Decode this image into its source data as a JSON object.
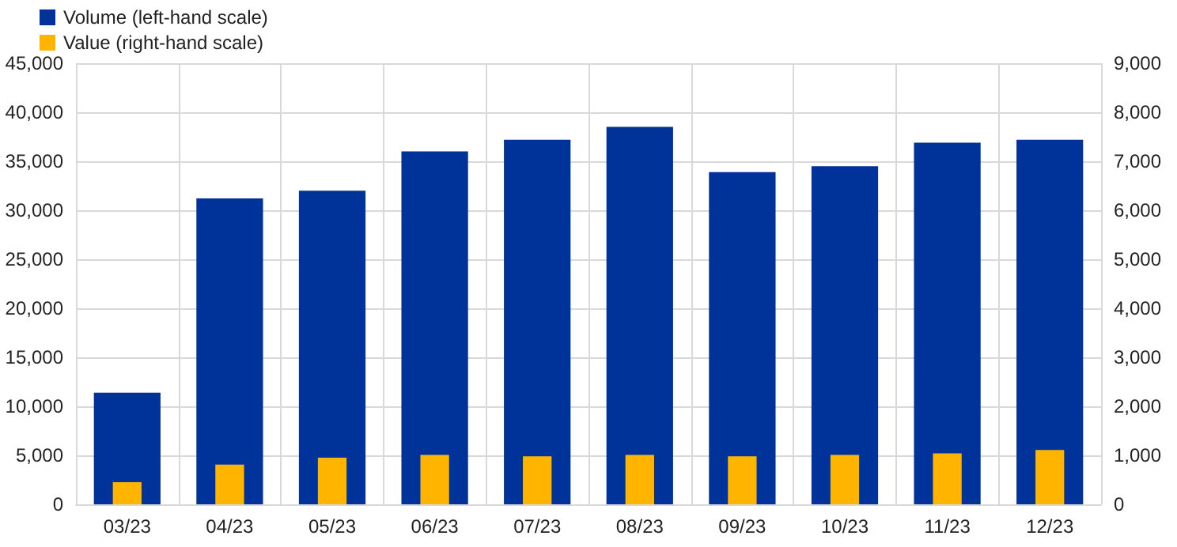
{
  "chart_data": {
    "type": "bar",
    "categories": [
      "03/23",
      "04/23",
      "05/23",
      "06/23",
      "07/23",
      "08/23",
      "09/23",
      "10/23",
      "11/23",
      "12/23"
    ],
    "series": [
      {
        "name": "Volume (left-hand scale)",
        "color": "#003399",
        "values": [
          11400,
          31200,
          32000,
          36000,
          37200,
          38500,
          33900,
          34500,
          36900,
          37200
        ]
      },
      {
        "name": "Value (right-hand scale)",
        "color": "#ffb400",
        "axis": "y2",
        "values": [
          450,
          810,
          950,
          1010,
          980,
          1010,
          980,
          1010,
          1040,
          1110
        ]
      }
    ],
    "ylim": [
      0,
      45000
    ],
    "yticks": [
      0,
      {
        "value": 5000,
        "label": "5,000"
      },
      {
        "value": 10000,
        "label": "10,000"
      },
      {
        "value": 15000,
        "label": "15,000"
      },
      {
        "value": 20000,
        "label": "20,000"
      },
      {
        "value": 25000,
        "label": "25,000"
      },
      {
        "value": 30000,
        "label": "30,000"
      },
      {
        "value": 35000,
        "label": "35,000"
      },
      {
        "value": 40000,
        "label": "40,000"
      },
      {
        "value": 45000,
        "label": "45,000"
      }
    ],
    "y2lim": [
      0,
      9000
    ],
    "y2ticks": [
      0,
      {
        "value": 1000,
        "label": "1,000"
      },
      {
        "value": 2000,
        "label": "2,000"
      },
      {
        "value": 3000,
        "label": "3,000"
      },
      {
        "value": 4000,
        "label": "4,000"
      },
      {
        "value": 5000,
        "label": "5,000"
      },
      {
        "value": 6000,
        "label": "6,000"
      },
      {
        "value": 7000,
        "label": "7,000"
      },
      {
        "value": 8000,
        "label": "8,000"
      },
      {
        "value": 9000,
        "label": "9,000"
      }
    ],
    "grid": true,
    "legend": "top left"
  }
}
